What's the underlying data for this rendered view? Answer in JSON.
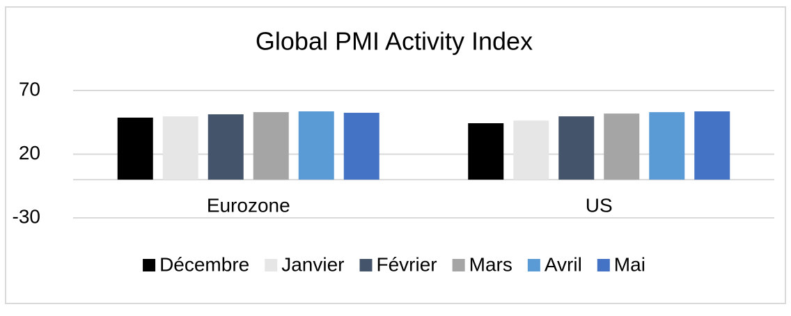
{
  "chart_data": {
    "type": "bar",
    "title": "Global PMI Activity Index",
    "categories": [
      "Eurozone",
      "US"
    ],
    "series": [
      {
        "name": "Décembre",
        "color": "#000000",
        "values": [
          48.7,
          44.3
        ]
      },
      {
        "name": "Janvier",
        "color": "#e7e6e6",
        "values": [
          49.7,
          46.4
        ]
      },
      {
        "name": "Février",
        "color": "#44546a",
        "values": [
          51.3,
          49.7
        ]
      },
      {
        "name": "Mars",
        "color": "#a5a5a5",
        "values": [
          53.0,
          51.9
        ]
      },
      {
        "name": "Avril",
        "color": "#5b9bd5",
        "values": [
          53.6,
          53.0
        ]
      },
      {
        "name": "Mai",
        "color": "#4472c4",
        "values": [
          52.5,
          53.6
        ]
      }
    ],
    "ylim": [
      -30,
      70
    ],
    "yticks": [
      -30,
      20,
      70
    ],
    "grid": true,
    "legend": "bottom"
  }
}
